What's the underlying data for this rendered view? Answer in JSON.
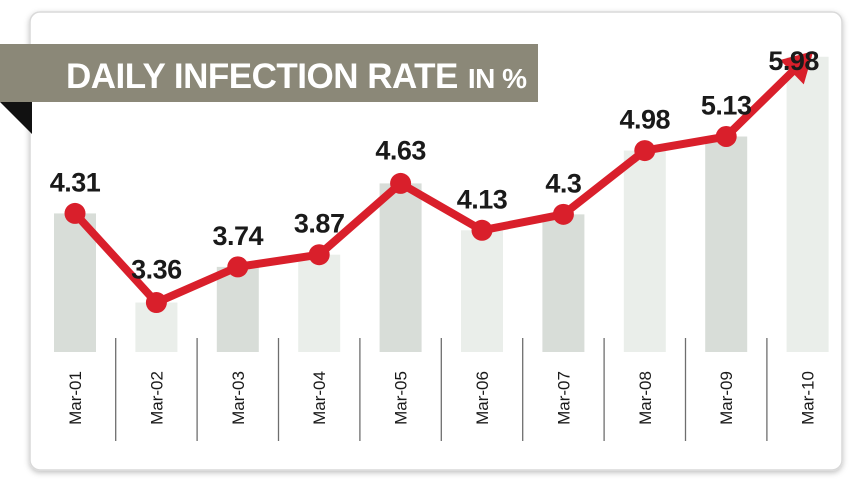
{
  "chart_data": {
    "type": "line",
    "title": "DAILY INFECTION RATE",
    "title_unit": "IN %",
    "categories": [
      "Mar-01",
      "Mar-02",
      "Mar-03",
      "Mar-04",
      "Mar-05",
      "Mar-06",
      "Mar-07",
      "Mar-08",
      "Mar-09",
      "Mar-10"
    ],
    "values": [
      4.31,
      3.36,
      3.74,
      3.87,
      4.63,
      4.13,
      4.3,
      4.98,
      5.13,
      5.98
    ],
    "value_labels": [
      "4.31",
      "3.36",
      "3.74",
      "3.87",
      "4.63",
      "4.13",
      "4.3",
      "4.98",
      "5.13",
      "5.98"
    ],
    "ylim": [
      1.5,
      6.5
    ],
    "xlabel": "",
    "ylabel": "",
    "grid": false,
    "legend": "none"
  },
  "colors": {
    "frame_bg": "#ffffff",
    "frame_border": "#d9d9d9",
    "title_bg": "#8b8878",
    "title_tab": "#111111",
    "column_dark": "#d8ddd8",
    "column_light": "#eaeeea",
    "line": "#d91f2b",
    "marker": "#d91f2b",
    "text": "#1a1a1a",
    "tick": "#6e6e6e"
  }
}
